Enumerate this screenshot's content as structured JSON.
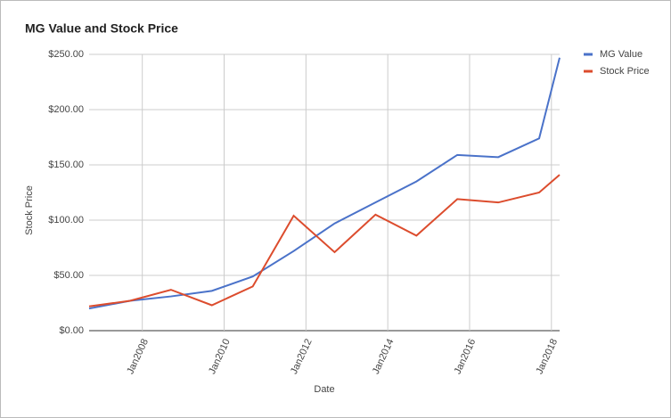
{
  "chart_data": {
    "type": "line",
    "title": "MG Value and Stock Price",
    "x": [
      2006.7,
      2007.7,
      2008.7,
      2009.7,
      2010.7,
      2011.7,
      2012.7,
      2013.7,
      2014.7,
      2015.7,
      2016.7,
      2017.7,
      2018.2
    ],
    "series": [
      {
        "name": "MG Value",
        "color": "#4a72c9",
        "values": [
          20,
          27,
          31,
          36,
          49,
          72,
          97,
          116,
          135,
          159,
          157,
          174,
          247
        ]
      },
      {
        "name": "Stock Price",
        "color": "#dc4c2d",
        "values": [
          22,
          27,
          37,
          23,
          40,
          104,
          71,
          105,
          86,
          119,
          116,
          125,
          141
        ]
      }
    ],
    "xlabel": "Date",
    "ylabel": "Stock Price",
    "xlim": [
      2006.7,
      2018.2
    ],
    "xticks": [
      {
        "value": 2008,
        "label": "Jan2008"
      },
      {
        "value": 2010,
        "label": "Jan2010"
      },
      {
        "value": 2012,
        "label": "Jan2012"
      },
      {
        "value": 2014,
        "label": "Jan2014"
      },
      {
        "value": 2016,
        "label": "Jan2016"
      },
      {
        "value": 2018,
        "label": "Jan2018"
      }
    ],
    "ylim": [
      0,
      250
    ],
    "yticks": [
      {
        "value": 0,
        "label": "$0.00"
      },
      {
        "value": 50,
        "label": "$50.00"
      },
      {
        "value": 100,
        "label": "$100.00"
      },
      {
        "value": 150,
        "label": "$150.00"
      },
      {
        "value": 200,
        "label": "$200.00"
      },
      {
        "value": 250,
        "label": "$250.00"
      }
    ],
    "grid": true,
    "legend": "right"
  }
}
